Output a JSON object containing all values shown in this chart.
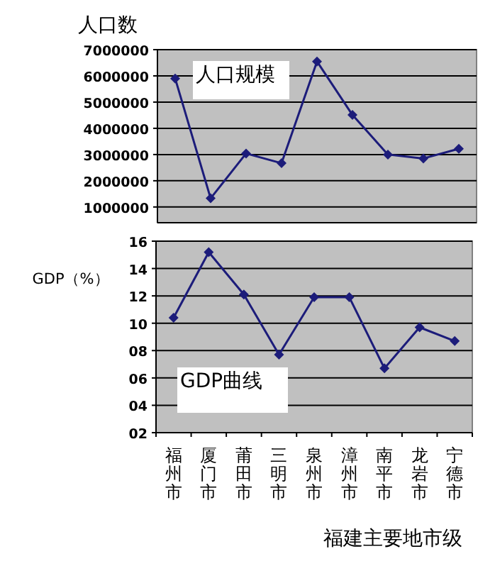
{
  "chart_data": [
    {
      "type": "line",
      "ylabel": "人口数",
      "annotations": [
        "人口规模"
      ],
      "categories": [
        null,
        null,
        null,
        null,
        null,
        null,
        null,
        null,
        null
      ],
      "series": [
        {
          "color": "#1c1c7a",
          "values": [
            5900000,
            1330000,
            3040000,
            2670000,
            6550000,
            4510000,
            3000000,
            2850000,
            3220000
          ]
        }
      ],
      "ylim": [
        400000,
        7000000
      ],
      "yticks": [
        1000000,
        2000000,
        3000000,
        4000000,
        5000000,
        6000000,
        7000000
      ],
      "grid": "y",
      "marker": "diamond",
      "tick_labels": "y"
    },
    {
      "type": "line",
      "ylabel": "GDP（%）",
      "xlabel": "福建主要地市级",
      "annotations": [
        "GDP曲线"
      ],
      "categories": [
        "福州市",
        "厦门市",
        "莆田市",
        "三明市",
        "泉州市",
        "漳州市",
        "南平市",
        "龙岩市",
        "宁德市"
      ],
      "series": [
        {
          "color": "#1c1c7a",
          "values": [
            10.4,
            15.2,
            12.1,
            7.7,
            11.9,
            11.9,
            6.7,
            9.7,
            8.7
          ]
        }
      ],
      "ylim": [
        2,
        16
      ],
      "yticks": [
        {
          "value": 2,
          "label": "02"
        },
        {
          "value": 4,
          "label": "04"
        },
        {
          "value": 6,
          "label": "06"
        },
        {
          "value": 8,
          "label": "08"
        },
        10,
        12,
        14,
        16
      ],
      "grid": "y",
      "marker": "diamond"
    }
  ]
}
